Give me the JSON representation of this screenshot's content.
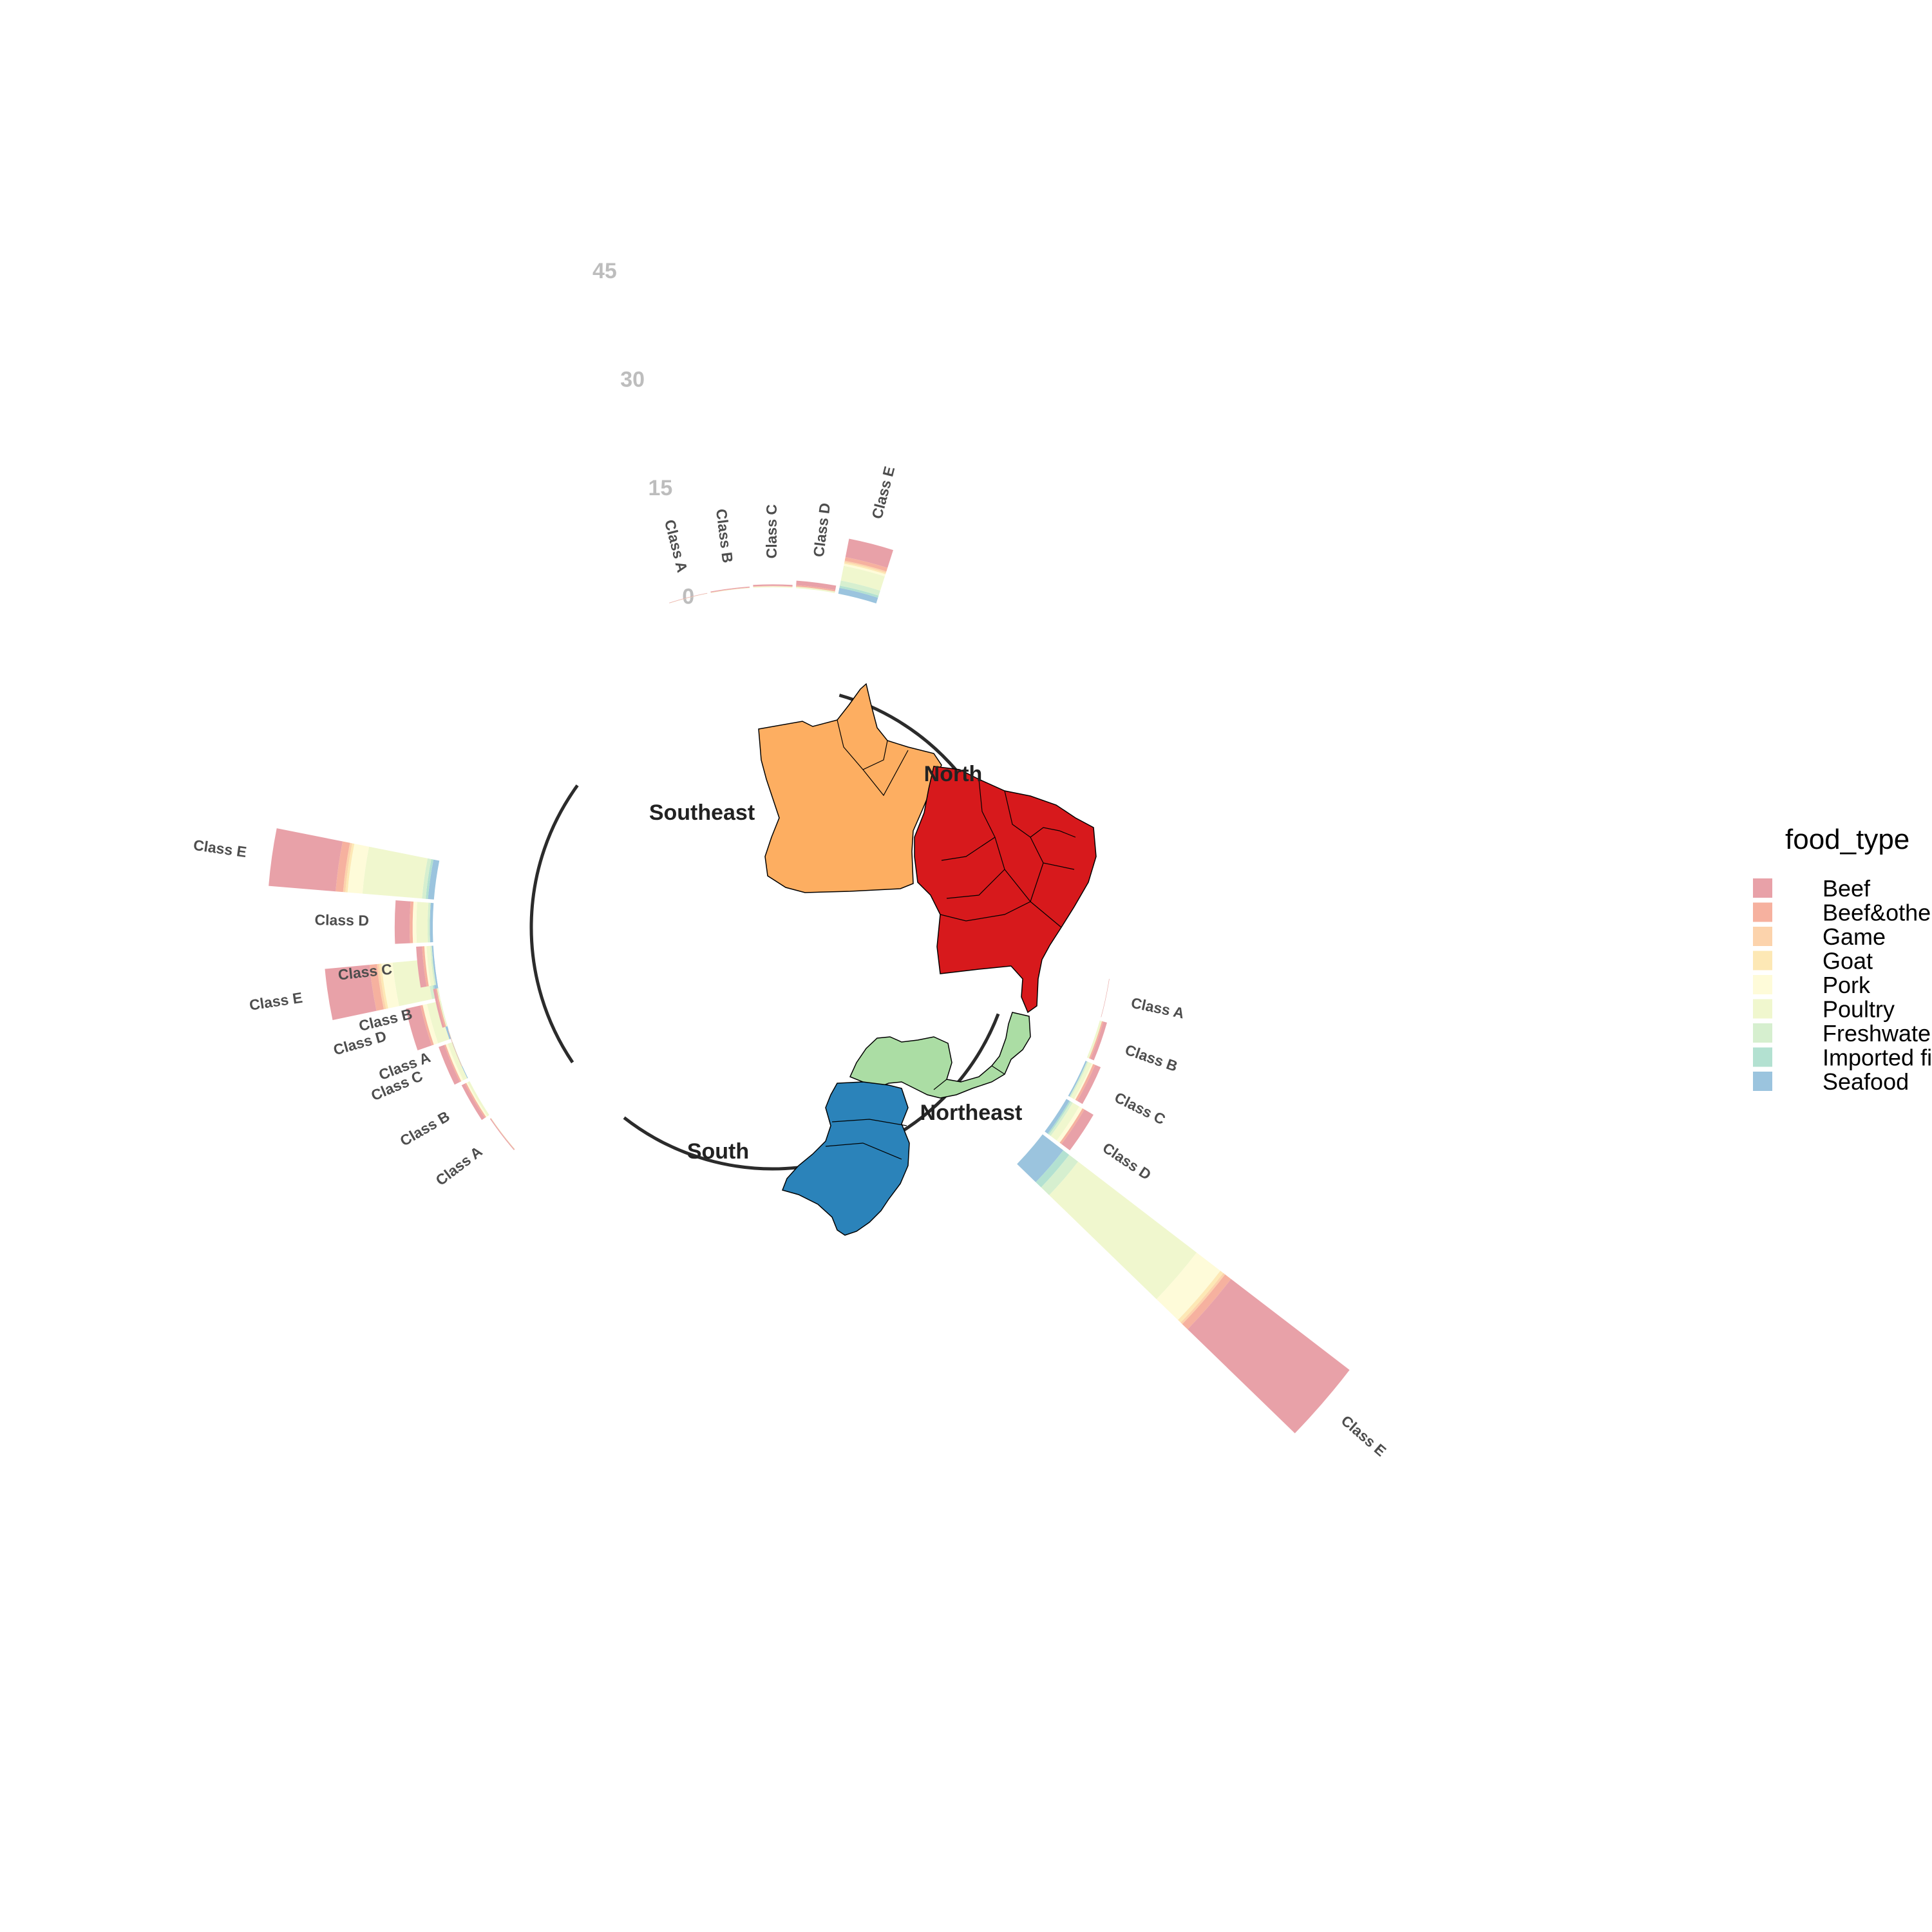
{
  "chart_data": {
    "type": "circular stacked bar",
    "legend_title": "food_type",
    "legend_placement": "right",
    "food_types": [
      "Beef",
      "Beef&others",
      "Game",
      "Goat",
      "Pork",
      "Poultry",
      "Freshwater fish",
      "Imported fish",
      "Seafood"
    ],
    "food_type_labels": [
      "Beef",
      "Beef&othe",
      "Game",
      "Goat",
      "Pork",
      "Poultry",
      "Freshwate",
      "Imported fi",
      "Seafood"
    ],
    "colors": {
      "Beef": "#e8a1a8",
      "Beef&others": "#f6b19f",
      "Game": "#fcd3ac",
      "Goat": "#fde8b5",
      "Pork": "#fefbd9",
      "Poultry": "#f0f7ce",
      "Freshwater fish": "#d6efcf",
      "Imported fish": "#b3e1d1",
      "Seafood": "#9bc4de"
    },
    "radial_axis": {
      "ticks": [
        "0",
        "15",
        "30",
        "45"
      ],
      "range": [
        0,
        50
      ]
    },
    "classes": [
      "Class A",
      "Class B",
      "Class C",
      "Class D",
      "Class E"
    ],
    "groups": [
      {
        "region": "North",
        "bars": [
          {
            "class": "Class A",
            "values": {
              "Beef": 0.05,
              "Beef&others": 0.02,
              "Poultry": 0.03
            }
          },
          {
            "class": "Class B",
            "values": {
              "Beef": 0.1,
              "Beef&others": 0.05,
              "Poultry": 0.05
            }
          },
          {
            "class": "Class C",
            "values": {
              "Beef": 0.2,
              "Beef&others": 0.05,
              "Pork": 0.05,
              "Poultry": 0.1
            }
          },
          {
            "class": "Class D",
            "values": {
              "Beef": 0.6,
              "Beef&others": 0.2,
              "Poultry": 0.2
            }
          },
          {
            "class": "Class E",
            "values": {
              "Beef": 2.5,
              "Beef&others": 0.5,
              "Game": 0.2,
              "Goat": 0.2,
              "Pork": 0.3,
              "Poultry": 2.0,
              "Freshwater fish": 0.7,
              "Imported fish": 0.3,
              "Seafood": 0.8
            }
          }
        ]
      },
      {
        "region": "Northeast",
        "bars": [
          {
            "class": "Class A",
            "values": {
              "Beef": 0.05,
              "Poultry": 0.02
            }
          },
          {
            "class": "Class B",
            "values": {
              "Beef": 0.5,
              "Beef&others": 0.2,
              "Poultry": 0.3
            }
          },
          {
            "class": "Class C",
            "values": {
              "Beef": 0.8,
              "Beef&others": 0.3,
              "Pork": 0.2,
              "Poultry": 0.5,
              "Freshwater fish": 0.2,
              "Seafood": 0.2
            }
          },
          {
            "class": "Class D",
            "values": {
              "Beef": 1.4,
              "Beef&others": 0.3,
              "Pork": 0.5,
              "Poultry": 1.0,
              "Freshwater fish": 0.3,
              "Imported fish": 0.2,
              "Seafood": 0.5
            }
          },
          {
            "class": "Class E",
            "values": {
              "Beef": 20.0,
              "Beef&others": 1.0,
              "Game": 0.3,
              "Goat": 0.5,
              "Pork": 4.0,
              "Poultry": 20.0,
              "Freshwater fish": 1.5,
              "Imported fish": 1.0,
              "Seafood": 3.5
            }
          }
        ]
      },
      {
        "region": "South",
        "bars": [
          {
            "class": "Class A",
            "values": {
              "Beef": 0.1,
              "Beef&others": 0.05,
              "Poultry": 0.05
            }
          },
          {
            "class": "Class B",
            "values": {
              "Beef": 0.5,
              "Beef&others": 0.2,
              "Pork": 0.2,
              "Poultry": 0.3
            }
          },
          {
            "class": "Class C",
            "values": {
              "Beef": 0.8,
              "Beef&others": 0.2,
              "Pork": 0.3,
              "Poultry": 0.6,
              "Seafood": 0.1
            }
          },
          {
            "class": "Class D",
            "values": {
              "Beef": 2.0,
              "Beef&others": 0.3,
              "Pork": 0.6,
              "Poultry": 1.6,
              "Seafood": 0.3
            }
          },
          {
            "class": "Class E",
            "values": {
              "Beef": 6.0,
              "Beef&others": 1.0,
              "Game": 0.3,
              "Goat": 0.3,
              "Pork": 1.5,
              "Poultry": 4.5,
              "Freshwater fish": 0.4,
              "Imported fish": 0.2,
              "Seafood": 0.5
            }
          }
        ]
      },
      {
        "region": "Southeast",
        "bars": [
          {
            "class": "Class A",
            "values": {
              "Beef": 0.05,
              "Poultry": 0.05
            }
          },
          {
            "class": "Class B",
            "values": {
              "Beef": 0.3,
              "Beef&others": 0.2,
              "Poultry": 0.2
            }
          },
          {
            "class": "Class C",
            "values": {
              "Beef": 0.8,
              "Beef&others": 0.3,
              "Pork": 0.3,
              "Poultry": 0.5,
              "Freshwater fish": 0.2,
              "Seafood": 0.2
            }
          },
          {
            "class": "Class D",
            "values": {
              "Beef": 2.0,
              "Beef&others": 0.4,
              "Pork": 0.5,
              "Poultry": 1.5,
              "Freshwater fish": 0.3,
              "Seafood": 0.4
            }
          },
          {
            "class": "Class E",
            "values": {
              "Beef": 9.0,
              "Beef&others": 1.0,
              "Game": 0.3,
              "Goat": 0.3,
              "Pork": 2.0,
              "Poultry": 8.0,
              "Freshwater fish": 0.5,
              "Imported fish": 0.3,
              "Seafood": 0.8
            }
          }
        ]
      }
    ],
    "map_regions": [
      {
        "name": "North",
        "label": "North",
        "color": "#fdae61"
      },
      {
        "name": "Northeast",
        "label": "Northeast",
        "color": "#d7191c"
      },
      {
        "name": "Southeast",
        "label": "Southeast",
        "color": "#abdda4"
      },
      {
        "name": "South",
        "label": "South",
        "color": "#2b83ba"
      }
    ],
    "map_label_texts": [
      "Southeast",
      "North",
      "Northeast",
      "South"
    ]
  }
}
